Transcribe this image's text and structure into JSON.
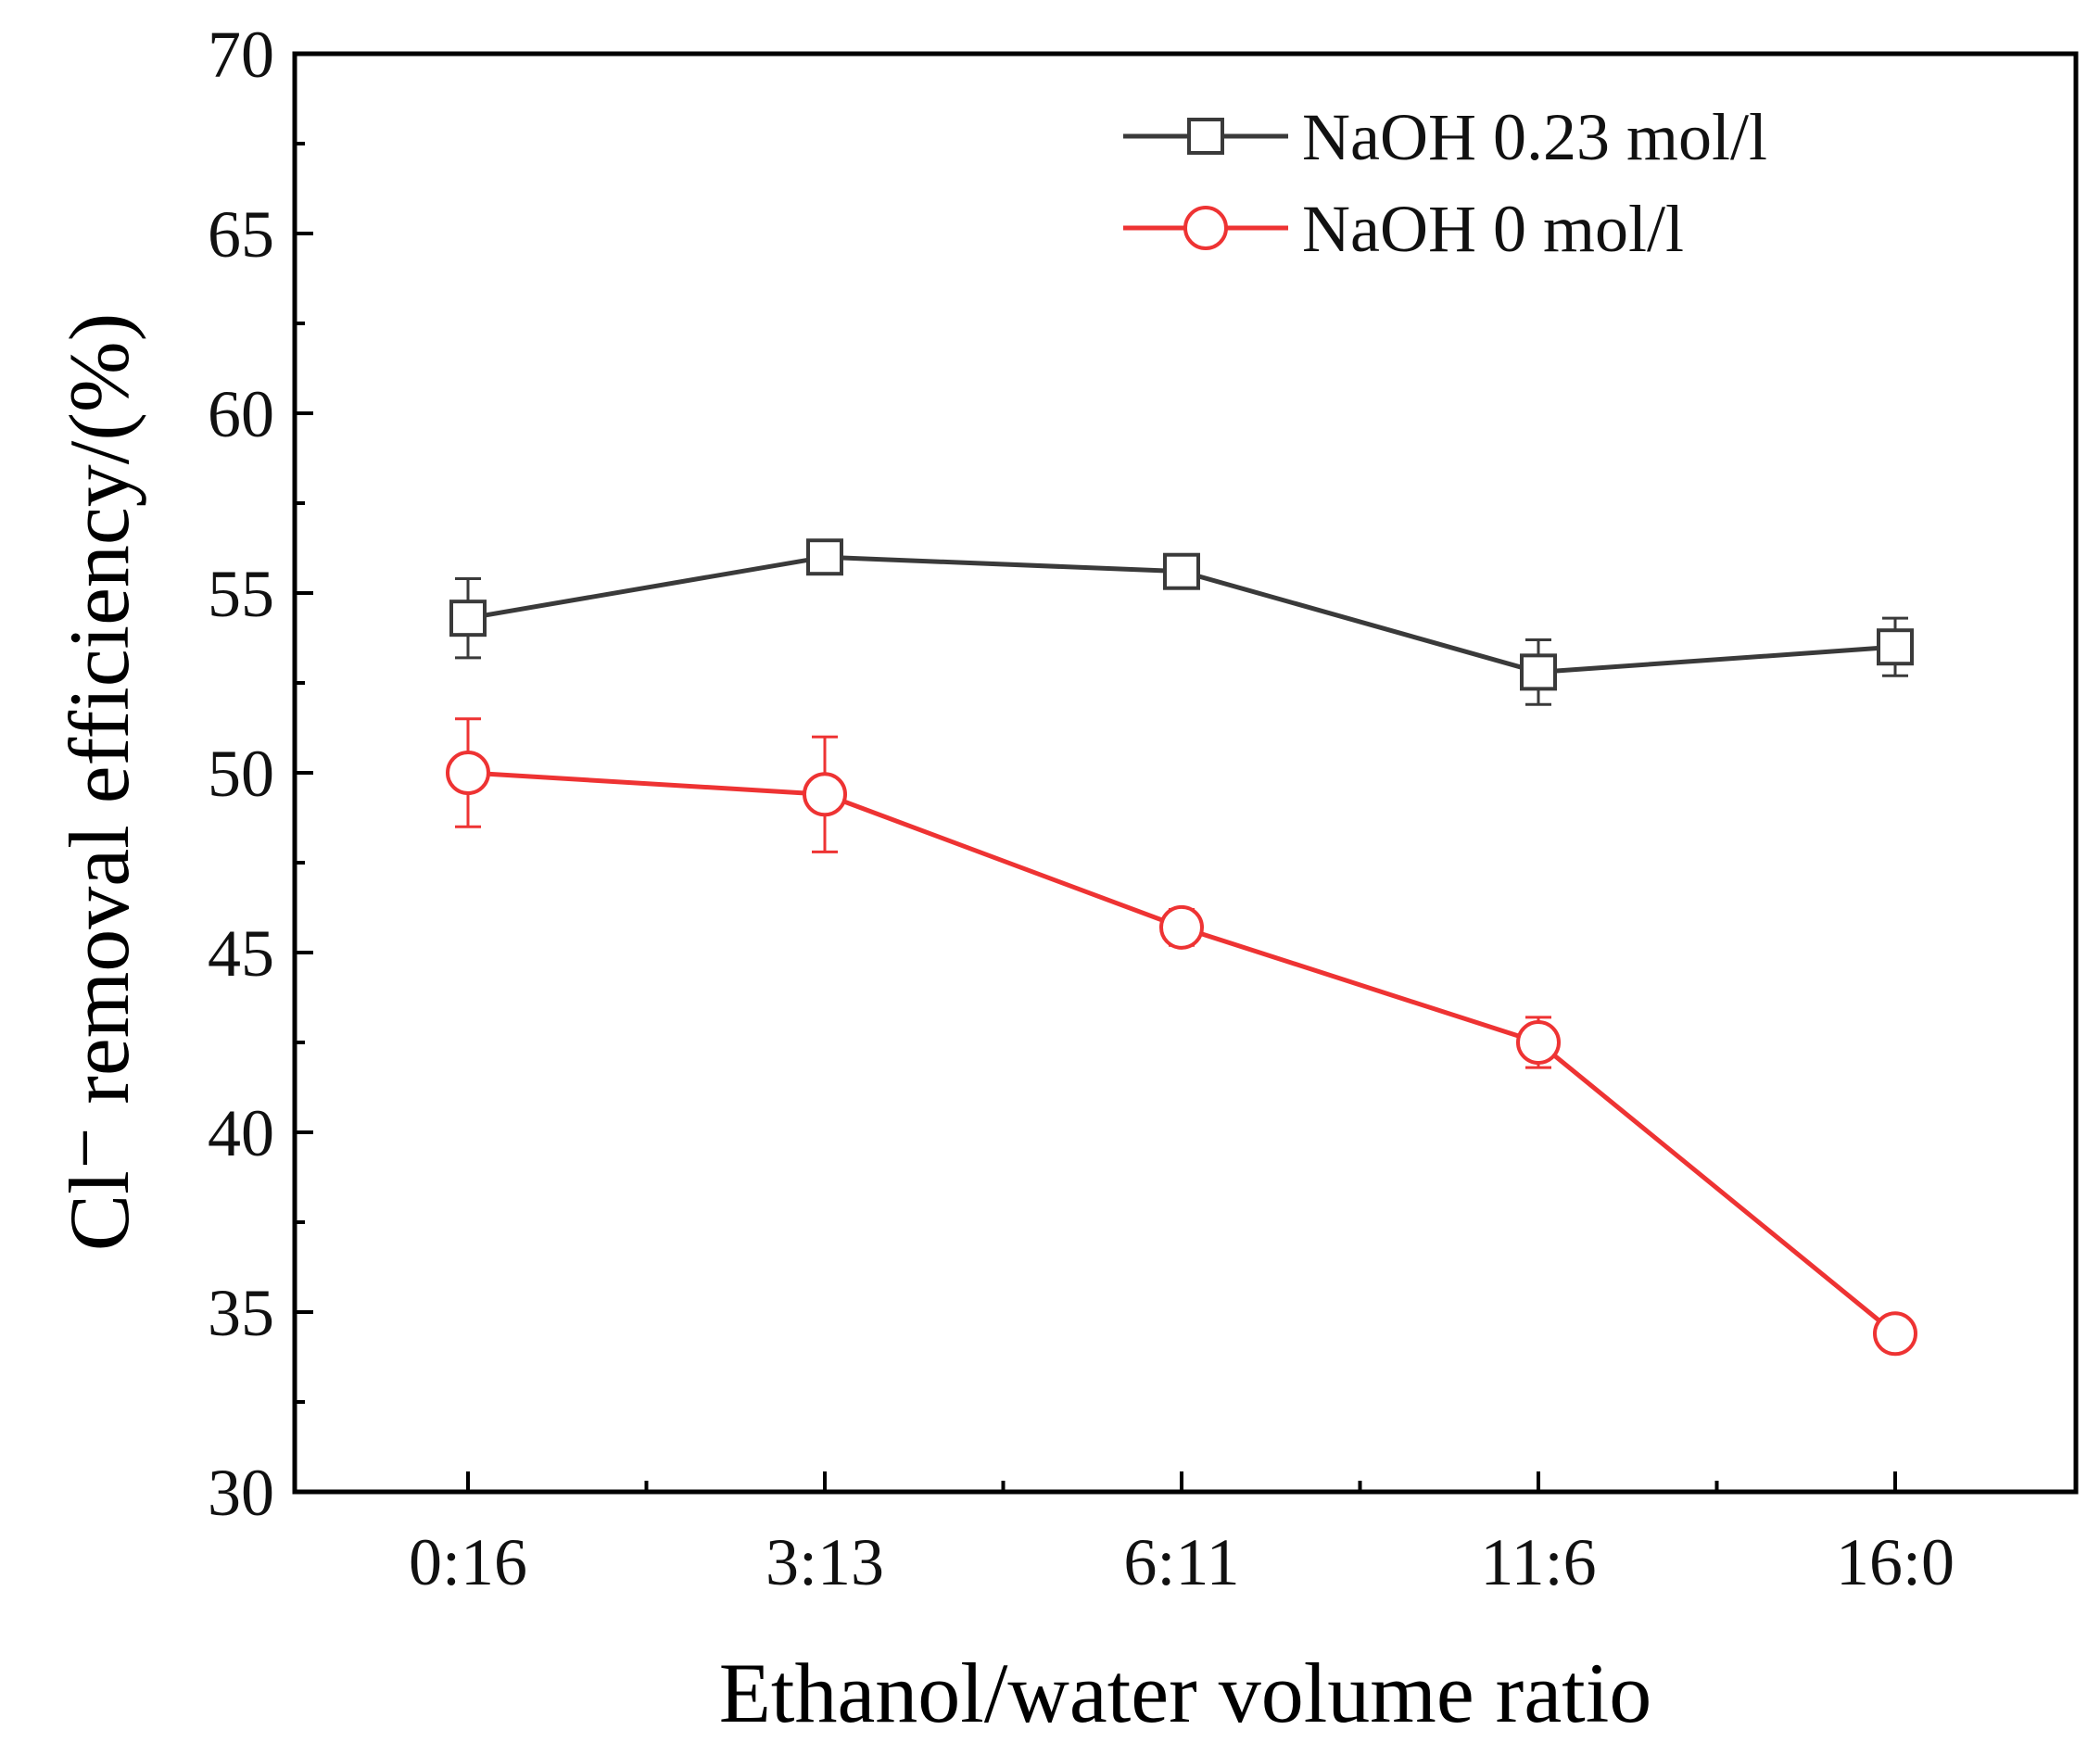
{
  "chart_data": {
    "type": "line",
    "title": "",
    "xlabel": "Ethanol/water volume ratio",
    "ylabel": "Cl⁻ removal efficiency/(%)",
    "categories": [
      "0:16",
      "3:13",
      "6:11",
      "11:6",
      "16:0"
    ],
    "ylim": [
      30,
      70
    ],
    "yticks": [
      30,
      35,
      40,
      45,
      50,
      55,
      60,
      65,
      70
    ],
    "legend_position": "top-right",
    "series": [
      {
        "name": "NaOH 0.23 mol/l",
        "marker": "square",
        "color": "#3a3a3a",
        "values": [
          54.3,
          56.0,
          55.6,
          52.8,
          53.5
        ],
        "errors": [
          1.1,
          0.4,
          0.3,
          0.9,
          0.8
        ]
      },
      {
        "name": "NaOH 0 mol/l",
        "marker": "circle",
        "color": "#ee3333",
        "values": [
          50.0,
          49.4,
          45.7,
          42.5,
          34.4
        ],
        "errors": [
          1.5,
          1.6,
          0.5,
          0.7,
          0.0
        ]
      }
    ]
  }
}
